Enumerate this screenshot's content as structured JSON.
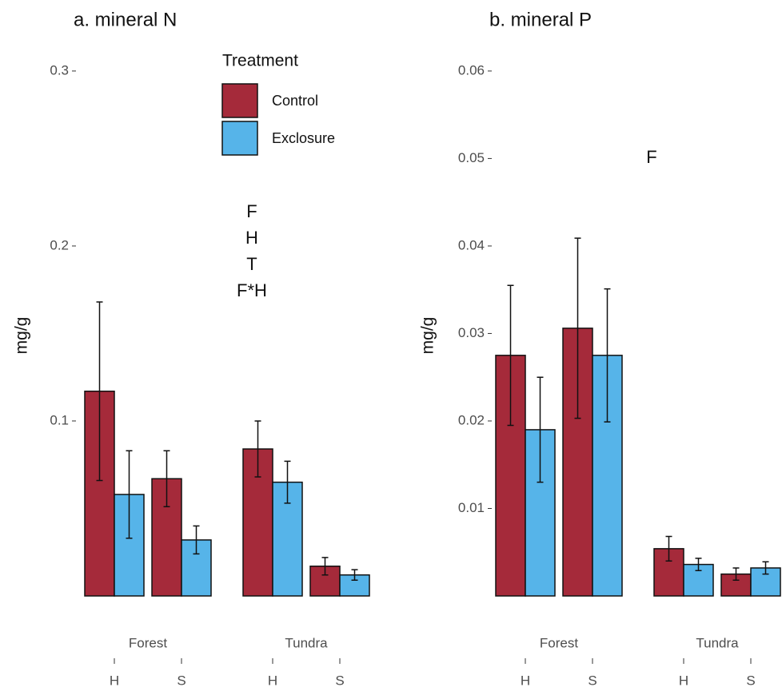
{
  "chart_data": [
    {
      "type": "bar",
      "title": "a. mineral N",
      "y_label": "mg/g",
      "groups": [
        "Forest",
        "Tundra"
      ],
      "categories": [
        "H",
        "S",
        "H",
        "S"
      ],
      "series": [
        {
          "name": "Control",
          "color": "#a52a3a",
          "values": [
            0.117,
            0.067,
            0.084,
            0.017
          ],
          "errors": [
            0.051,
            0.016,
            0.016,
            0.005
          ]
        },
        {
          "name": "Exclosure",
          "color": "#56b4e9",
          "values": [
            0.058,
            0.032,
            0.065,
            0.012
          ],
          "errors": [
            0.025,
            0.008,
            0.012,
            0.003
          ]
        }
      ],
      "legend_title": "Treatment",
      "annotations": [
        "F",
        "H",
        "T",
        "F*H"
      ],
      "ylim": [
        0,
        0.31
      ],
      "yticks": [
        0.1,
        0.2,
        0.3
      ]
    },
    {
      "type": "bar",
      "title": "b. mineral P",
      "y_label": "mg/g",
      "groups": [
        "Forest",
        "Tundra"
      ],
      "categories": [
        "H",
        "S",
        "H",
        "S"
      ],
      "series": [
        {
          "color": "#a52a3a",
          "values": [
            0.0275,
            0.0306,
            0.0054,
            0.0025
          ],
          "errors": [
            0.008,
            0.0103,
            0.0014,
            0.0007
          ]
        },
        {
          "color": "#56b4e9",
          "values": [
            0.019,
            0.0275,
            0.0036,
            0.0032
          ],
          "errors": [
            0.006,
            0.0076,
            0.0007,
            0.0007
          ]
        }
      ],
      "annotations": [
        "F"
      ],
      "ylim": [
        0,
        0.062
      ],
      "yticks": [
        0.01,
        0.02,
        0.03,
        0.04,
        0.05,
        0.06
      ]
    }
  ]
}
